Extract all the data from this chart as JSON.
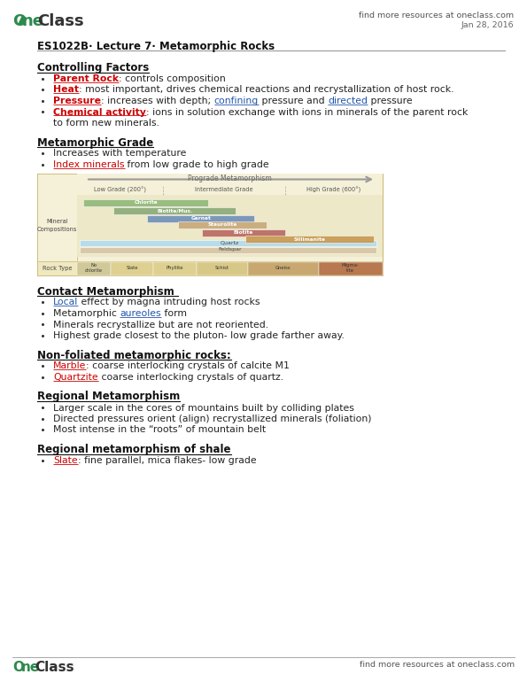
{
  "bg_color": "#ffffff",
  "logo_color": "#2d8a4e",
  "header_right": "find more resources at oneclass.com",
  "date": "Jan 28, 2016",
  "lecture_title": "ES1022B· Lecture 7· Metamorphic Rocks",
  "footer_right": "find more resources at oneclass.com",
  "sections": [
    {
      "heading": "Controlling Factors",
      "bullets": [
        {
          "parts": [
            {
              "text": "Parent Rock",
              "color": "#cc0000",
              "bold": true,
              "underline": true
            },
            {
              "text": ": controls composition",
              "color": "#222222"
            }
          ]
        },
        {
          "parts": [
            {
              "text": "Heat",
              "color": "#cc0000",
              "bold": true,
              "underline": true
            },
            {
              "text": ": most important, drives chemical reactions and recrystallization of host rock.",
              "color": "#222222"
            }
          ]
        },
        {
          "parts": [
            {
              "text": "Pressure",
              "color": "#cc0000",
              "bold": true,
              "underline": true
            },
            {
              "text": ": increases with depth; ",
              "color": "#222222"
            },
            {
              "text": "confining",
              "color": "#2255aa",
              "underline": true
            },
            {
              "text": " pressure and ",
              "color": "#222222"
            },
            {
              "text": "directed",
              "color": "#2255aa",
              "underline": true
            },
            {
              "text": " pressure",
              "color": "#222222"
            }
          ]
        },
        {
          "parts": [
            {
              "text": "Chemical activity",
              "color": "#cc0000",
              "bold": true,
              "underline": true
            },
            {
              "text": ": ions in solution exchange with ions in minerals of the parent rock",
              "color": "#222222"
            }
          ]
        },
        {
          "parts": [
            {
              "text": "to form new minerals.",
              "color": "#222222"
            }
          ],
          "continuation": true
        }
      ]
    },
    {
      "heading": "Metamorphic Grade",
      "bullets": [
        {
          "parts": [
            {
              "text": "Increases with temperature",
              "color": "#222222"
            }
          ]
        },
        {
          "parts": [
            {
              "text": "Index minerals",
              "color": "#cc0000",
              "underline": true
            },
            {
              "text": " from low grade to high grade",
              "color": "#222222"
            }
          ]
        }
      ],
      "has_diagram": true
    },
    {
      "heading": "Contact Metamorphism ",
      "bullets": [
        {
          "parts": [
            {
              "text": "Local",
              "color": "#2255aa",
              "underline": true
            },
            {
              "text": " effect by magna intruding host rocks",
              "color": "#222222"
            }
          ]
        },
        {
          "parts": [
            {
              "text": "Metamorphic ",
              "color": "#222222"
            },
            {
              "text": "aureoles",
              "color": "#2255aa",
              "underline": true
            },
            {
              "text": " form",
              "color": "#222222"
            }
          ]
        },
        {
          "parts": [
            {
              "text": "Minerals recrystallize but are not reoriented.",
              "color": "#222222"
            }
          ]
        },
        {
          "parts": [
            {
              "text": "Highest grade closest to the pluton- low grade farther away.",
              "color": "#222222"
            }
          ]
        }
      ]
    },
    {
      "heading": "Non-foliated metamorphic rocks:",
      "bullets": [
        {
          "parts": [
            {
              "text": "Marble",
              "color": "#cc0000",
              "underline": true
            },
            {
              "text": ": coarse interlocking crystals of calcite M1",
              "color": "#222222"
            }
          ]
        },
        {
          "parts": [
            {
              "text": "Quartzite",
              "color": "#cc0000",
              "underline": true
            },
            {
              "text": " coarse interlocking crystals of quartz.",
              "color": "#222222"
            }
          ]
        }
      ]
    },
    {
      "heading": "Regional Metamorphism",
      "bullets": [
        {
          "parts": [
            {
              "text": "Larger scale in the cores of mountains built by colliding plates",
              "color": "#222222"
            }
          ]
        },
        {
          "parts": [
            {
              "text": "Directed pressures orient (align) recrystallized minerals (foliation)",
              "color": "#222222"
            }
          ]
        },
        {
          "parts": [
            {
              "text": "Most intense in the “roots” of mountain belt",
              "color": "#222222"
            }
          ]
        }
      ]
    },
    {
      "heading": "Regional metamorphism of shale",
      "bullets": [
        {
          "parts": [
            {
              "text": "Slate",
              "color": "#cc0000",
              "underline": true
            },
            {
              "text": ": fine parallel, mica flakes- low grade",
              "color": "#222222"
            }
          ]
        }
      ]
    }
  ]
}
